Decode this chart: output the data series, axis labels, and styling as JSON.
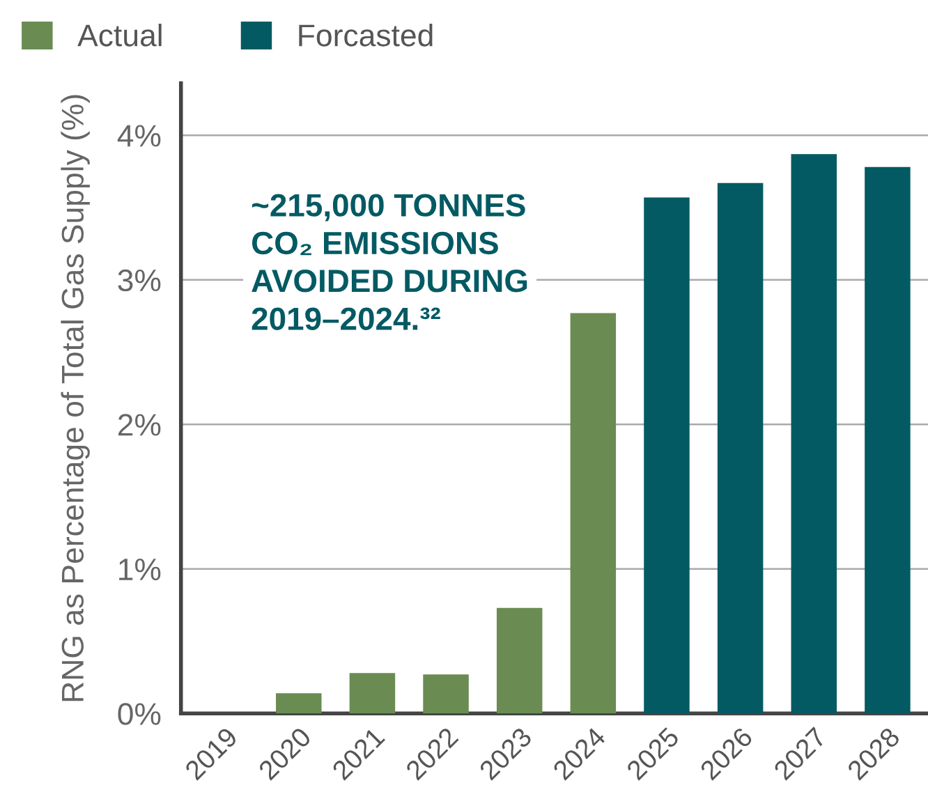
{
  "chart_data": {
    "type": "bar",
    "categories": [
      "2019",
      "2020",
      "2021",
      "2022",
      "2023",
      "2024",
      "2025",
      "2026",
      "2027",
      "2028"
    ],
    "series": [
      {
        "name": "Actual",
        "color": "#6a8c52",
        "values": [
          0,
          0.14,
          0.28,
          0.27,
          0.73,
          2.77,
          null,
          null,
          null,
          null
        ]
      },
      {
        "name": "Forcasted",
        "color": "#035a63",
        "values": [
          null,
          null,
          null,
          null,
          null,
          null,
          3.57,
          3.67,
          3.87,
          3.78
        ]
      }
    ],
    "ylabel": "RNG as Percentage of Total Gas Supply (%)",
    "ylim": [
      0,
      4.36
    ],
    "yticks": [
      {
        "value": 0,
        "label": "0%"
      },
      {
        "value": 1,
        "label": "1%"
      },
      {
        "value": 2,
        "label": "2%"
      },
      {
        "value": 3,
        "label": "3%"
      },
      {
        "value": 4,
        "label": "4%"
      }
    ],
    "grid": "y",
    "legend": "top left",
    "annotations": [
      "~215,000 TONNES\nCO₂ EMISSIONS\nAVOIDED DURING\n2019–2024.³²"
    ]
  }
}
